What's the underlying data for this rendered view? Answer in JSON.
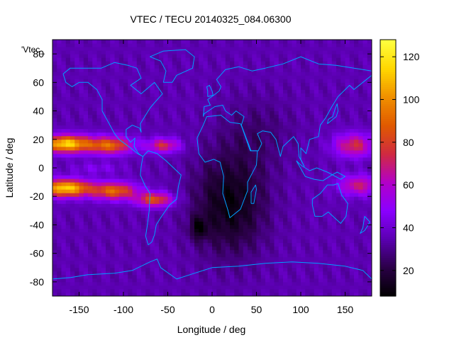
{
  "figure": {
    "title": "VTEC / TECU 20140325_084.06300",
    "xlabel": "Longitude / deg",
    "ylabel": "Latitude / deg",
    "plot_key_label": "'Vtec_"
  },
  "chart_data": {
    "type": "heatmap",
    "title": "VTEC / TECU 20140325_084.06300",
    "xlabel": "Longitude / deg",
    "ylabel": "Latitude / deg",
    "xlim": [
      -180,
      180
    ],
    "ylim": [
      -90,
      90
    ],
    "xticks": [
      -150,
      -100,
      -50,
      0,
      50,
      100,
      150
    ],
    "yticks": [
      -80,
      -60,
      -40,
      -20,
      0,
      20,
      40,
      60,
      80
    ],
    "colorbar": {
      "range": [
        8,
        128
      ],
      "ticks": [
        20,
        40,
        60,
        80,
        100,
        120
      ],
      "colormap": [
        "#000000",
        "#2a0046",
        "#5a00b0",
        "#8a00ff",
        "#b300c8",
        "#d02a40",
        "#e05a00",
        "#f09000",
        "#ffd800",
        "#ffff40"
      ]
    },
    "grid": false,
    "legend": "none",
    "overlay": "coastlines",
    "overlay_color": "#00a0ff",
    "grid_resolution": {
      "lon_step_deg": 5,
      "lat_step_deg": 2.5
    },
    "vtec_features": [
      {
        "description": "northern equatorial crest",
        "lon_range": [
          -180,
          -100
        ],
        "lat_range": [
          8,
          25
        ],
        "peak_tecu": 125
      },
      {
        "description": "southern equatorial crest",
        "lon_range": [
          -180,
          -100
        ],
        "lat_range": [
          -22,
          -8
        ],
        "peak_tecu": 120
      },
      {
        "description": "southern crest extension",
        "lon_range": [
          -100,
          -50
        ],
        "lat_range": [
          -25,
          -15
        ],
        "peak_tecu": 105
      },
      {
        "description": "northern crest extension",
        "lon_range": [
          -100,
          -40
        ],
        "lat_range": [
          12,
          22
        ],
        "peak_tecu": 85
      },
      {
        "description": "trough between crests",
        "lon_range": [
          -110,
          -60
        ],
        "lat_range": [
          -5,
          5
        ],
        "peak_tecu": 55
      },
      {
        "description": "eastern equatorial band",
        "lon_range": [
          120,
          180
        ],
        "lat_range": [
          -20,
          25
        ],
        "peak_tecu": 80
      },
      {
        "description": "nightside minimum",
        "lon_range": [
          -30,
          80
        ],
        "lat_range": [
          -60,
          20
        ],
        "min_tecu": 8
      },
      {
        "description": "background",
        "lon_range": [
          -180,
          180
        ],
        "lat_range": [
          -90,
          90
        ],
        "typical_tecu": 35
      }
    ]
  }
}
